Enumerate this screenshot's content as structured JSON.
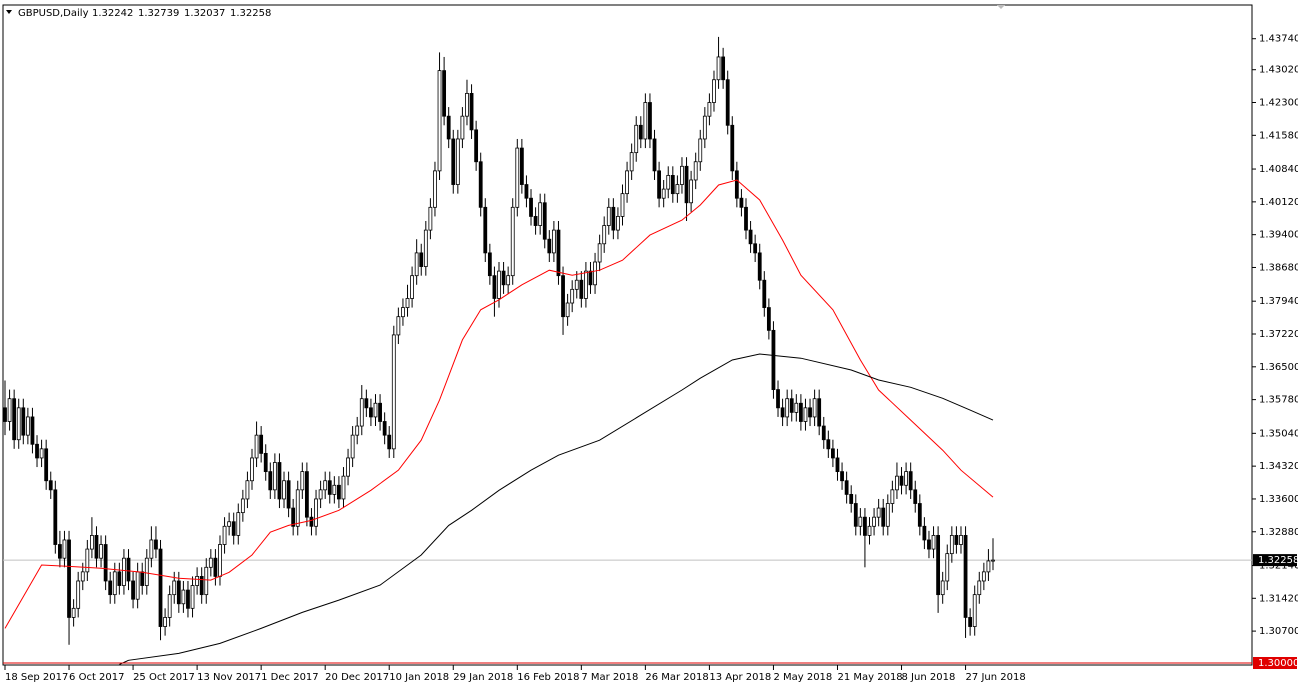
{
  "chart_data": {
    "type": "candlestick",
    "symbol": "GBPUSD,Daily",
    "ylim": [
      1.3,
      1.4444
    ],
    "xlim": [
      0,
      216
    ],
    "yticks": [
      {
        "value": 1.437,
        "label": "1.43740"
      },
      {
        "value": 1.4302,
        "label": "1.43020"
      },
      {
        "value": 1.423,
        "label": "1.42300"
      },
      {
        "value": 1.4158,
        "label": "1.41580"
      },
      {
        "value": 1.4084,
        "label": "1.40840"
      },
      {
        "value": 1.4012,
        "label": "1.40120"
      },
      {
        "value": 1.394,
        "label": "1.39400"
      },
      {
        "value": 1.3868,
        "label": "1.38680"
      },
      {
        "value": 1.3794,
        "label": "1.37940"
      },
      {
        "value": 1.3722,
        "label": "1.37220"
      },
      {
        "value": 1.365,
        "label": "1.36500"
      },
      {
        "value": 1.3578,
        "label": "1.35780"
      },
      {
        "value": 1.3504,
        "label": "1.35040"
      },
      {
        "value": 1.3432,
        "label": "1.34320"
      },
      {
        "value": 1.336,
        "label": "1.33600"
      },
      {
        "value": 1.3288,
        "label": "1.32880"
      },
      {
        "value": 1.3214,
        "label": "1.32140"
      },
      {
        "value": 1.3142,
        "label": "1.31420"
      },
      {
        "value": 1.307,
        "label": "1.30700"
      }
    ],
    "highlight_level": {
      "value": 1.3,
      "label": "1.30000"
    },
    "xticks": [
      {
        "value": 0,
        "label": "18 Sep 2017"
      },
      {
        "value": 14,
        "label": "6 Oct 2017"
      },
      {
        "value": 28,
        "label": "25 Oct 2017"
      },
      {
        "value": 42,
        "label": "13 Nov 2017"
      },
      {
        "value": 56,
        "label": "1 Dec 2017"
      },
      {
        "value": 70,
        "label": "20 Dec 2017"
      },
      {
        "value": 84,
        "label": "10 Jan 2018"
      },
      {
        "value": 98,
        "label": "29 Jan 2018"
      },
      {
        "value": 112,
        "label": "16 Feb 2018"
      },
      {
        "value": 126,
        "label": "7 Mar 2018"
      },
      {
        "value": 140,
        "label": "26 Mar 2018"
      },
      {
        "value": 154,
        "label": "13 Apr 2018"
      },
      {
        "value": 168,
        "label": "2 May 2018"
      },
      {
        "value": 182,
        "label": "21 May 2018"
      },
      {
        "value": 196,
        "label": "8 Jun 2018"
      },
      {
        "value": 210,
        "label": "27 Jun 2018"
      }
    ],
    "open": [
      1.356,
      1.353,
      1.358,
      1.349,
      1.356,
      1.35,
      1.354,
      1.348,
      1.345,
      1.347,
      1.34,
      1.338,
      1.326,
      1.323,
      1.327,
      1.31,
      1.312,
      1.318,
      1.32,
      1.325,
      1.328,
      1.323,
      1.326,
      1.318,
      1.315,
      1.32,
      1.317,
      1.323,
      1.318,
      1.314,
      1.32,
      1.317,
      1.323,
      1.327,
      1.325,
      1.308,
      1.31,
      1.315,
      1.318,
      1.313,
      1.316,
      1.312,
      1.317,
      1.319,
      1.315,
      1.321,
      1.323,
      1.319,
      1.326,
      1.33,
      1.331,
      1.328,
      1.333,
      1.336,
      1.34,
      1.345,
      1.35,
      1.346,
      1.342,
      1.338,
      1.344,
      1.336,
      1.34,
      1.334,
      1.33,
      1.338,
      1.342,
      1.332,
      1.33,
      1.336,
      1.338,
      1.34,
      1.337,
      1.339,
      1.336,
      1.341,
      1.345,
      1.35,
      1.352,
      1.358,
      1.356,
      1.354,
      1.357,
      1.353,
      1.35,
      1.347,
      1.372,
      1.376,
      1.378,
      1.38,
      1.385,
      1.39,
      1.387,
      1.395,
      1.4,
      1.408,
      1.43,
      1.42,
      1.415,
      1.405,
      1.415,
      1.42,
      1.425,
      1.417,
      1.41,
      1.4,
      1.39,
      1.385,
      1.38,
      1.386,
      1.383,
      1.385,
      1.4,
      1.413,
      1.405,
      1.402,
      1.398,
      1.396,
      1.401,
      1.393,
      1.39,
      1.395,
      1.385,
      1.376,
      1.379,
      1.382,
      1.384,
      1.38,
      1.386,
      1.383,
      1.388,
      1.392,
      1.396,
      1.4,
      1.395,
      1.398,
      1.403,
      1.408,
      1.412,
      1.418,
      1.415,
      1.423,
      1.415,
      1.408,
      1.402,
      1.404,
      1.407,
      1.403,
      1.405,
      1.409,
      1.401,
      1.406,
      1.41,
      1.415,
      1.42,
      1.423,
      1.428,
      1.433,
      1.428,
      1.418,
      1.408,
      1.402,
      1.4,
      1.395,
      1.392,
      1.39,
      1.384,
      1.378,
      1.373,
      1.36,
      1.356,
      1.354,
      1.358,
      1.355,
      1.357,
      1.353,
      1.356,
      1.354,
      1.358,
      1.352,
      1.349,
      1.347,
      1.345,
      1.342,
      1.34,
      1.337,
      1.335,
      1.33,
      1.332,
      1.328,
      1.33,
      1.332,
      1.334,
      1.33,
      1.335,
      1.338,
      1.341,
      1.339,
      1.342,
      1.338,
      1.335,
      1.33,
      1.327,
      1.325,
      1.328,
      1.315,
      1.318,
      1.324,
      1.328,
      1.326,
      1.328,
      1.31,
      1.308,
      1.315,
      1.318,
      1.32,
      1.32242
    ],
    "high": [
      1.362,
      1.36,
      1.36,
      1.358,
      1.358,
      1.356,
      1.356,
      1.35,
      1.349,
      1.349,
      1.342,
      1.34,
      1.329,
      1.329,
      1.329,
      1.314,
      1.32,
      1.322,
      1.327,
      1.332,
      1.33,
      1.328,
      1.328,
      1.32,
      1.322,
      1.322,
      1.325,
      1.325,
      1.32,
      1.322,
      1.322,
      1.325,
      1.33,
      1.33,
      1.327,
      1.312,
      1.317,
      1.32,
      1.32,
      1.318,
      1.318,
      1.319,
      1.321,
      1.321,
      1.323,
      1.325,
      1.325,
      1.328,
      1.332,
      1.333,
      1.333,
      1.335,
      1.338,
      1.342,
      1.347,
      1.353,
      1.352,
      1.348,
      1.344,
      1.346,
      1.346,
      1.342,
      1.342,
      1.336,
      1.34,
      1.344,
      1.344,
      1.334,
      1.338,
      1.34,
      1.342,
      1.342,
      1.341,
      1.341,
      1.343,
      1.347,
      1.352,
      1.354,
      1.361,
      1.36,
      1.358,
      1.359,
      1.359,
      1.355,
      1.352,
      1.374,
      1.378,
      1.38,
      1.383,
      1.387,
      1.393,
      1.392,
      1.397,
      1.402,
      1.41,
      1.434,
      1.433,
      1.422,
      1.417,
      1.417,
      1.422,
      1.428,
      1.427,
      1.419,
      1.412,
      1.402,
      1.392,
      1.387,
      1.388,
      1.388,
      1.387,
      1.402,
      1.415,
      1.415,
      1.407,
      1.404,
      1.4,
      1.403,
      1.403,
      1.395,
      1.397,
      1.397,
      1.387,
      1.381,
      1.384,
      1.386,
      1.386,
      1.388,
      1.388,
      1.39,
      1.394,
      1.398,
      1.402,
      1.402,
      1.4,
      1.405,
      1.41,
      1.414,
      1.42,
      1.42,
      1.425,
      1.425,
      1.417,
      1.41,
      1.406,
      1.409,
      1.409,
      1.407,
      1.411,
      1.411,
      1.408,
      1.412,
      1.417,
      1.422,
      1.425,
      1.43,
      1.4374,
      1.435,
      1.43,
      1.42,
      1.41,
      1.404,
      1.402,
      1.397,
      1.394,
      1.392,
      1.386,
      1.38,
      1.375,
      1.362,
      1.358,
      1.36,
      1.36,
      1.359,
      1.359,
      1.358,
      1.358,
      1.36,
      1.36,
      1.354,
      1.351,
      1.349,
      1.347,
      1.344,
      1.342,
      1.339,
      1.337,
      1.334,
      1.334,
      1.332,
      1.334,
      1.336,
      1.336,
      1.337,
      1.34,
      1.344,
      1.343,
      1.344,
      1.344,
      1.34,
      1.337,
      1.332,
      1.329,
      1.33,
      1.33,
      1.32,
      1.326,
      1.33,
      1.33,
      1.33,
      1.33,
      1.312,
      1.317,
      1.32,
      1.322,
      1.325,
      1.32739
    ],
    "low": [
      1.35,
      1.351,
      1.347,
      1.347,
      1.348,
      1.348,
      1.346,
      1.343,
      1.343,
      1.338,
      1.336,
      1.324,
      1.321,
      1.321,
      1.304,
      1.308,
      1.31,
      1.316,
      1.318,
      1.323,
      1.321,
      1.321,
      1.316,
      1.313,
      1.313,
      1.315,
      1.315,
      1.316,
      1.312,
      1.312,
      1.315,
      1.315,
      1.321,
      1.323,
      1.305,
      1.306,
      1.308,
      1.313,
      1.311,
      1.311,
      1.31,
      1.31,
      1.315,
      1.313,
      1.313,
      1.319,
      1.317,
      1.317,
      1.324,
      1.328,
      1.326,
      1.326,
      1.331,
      1.334,
      1.338,
      1.343,
      1.344,
      1.34,
      1.336,
      1.336,
      1.334,
      1.334,
      1.332,
      1.328,
      1.328,
      1.336,
      1.33,
      1.328,
      1.328,
      1.334,
      1.336,
      1.335,
      1.335,
      1.334,
      1.334,
      1.339,
      1.343,
      1.348,
      1.35,
      1.354,
      1.352,
      1.352,
      1.351,
      1.348,
      1.345,
      1.345,
      1.37,
      1.374,
      1.376,
      1.378,
      1.383,
      1.385,
      1.385,
      1.393,
      1.398,
      1.406,
      1.418,
      1.413,
      1.403,
      1.403,
      1.413,
      1.418,
      1.415,
      1.408,
      1.398,
      1.388,
      1.383,
      1.376,
      1.378,
      1.381,
      1.381,
      1.383,
      1.398,
      1.403,
      1.4,
      1.396,
      1.394,
      1.394,
      1.391,
      1.388,
      1.388,
      1.383,
      1.372,
      1.374,
      1.377,
      1.38,
      1.378,
      1.378,
      1.381,
      1.381,
      1.386,
      1.39,
      1.394,
      1.393,
      1.393,
      1.396,
      1.401,
      1.406,
      1.41,
      1.413,
      1.413,
      1.413,
      1.406,
      1.4,
      1.4,
      1.402,
      1.401,
      1.401,
      1.403,
      1.397,
      1.399,
      1.404,
      1.408,
      1.413,
      1.418,
      1.421,
      1.426,
      1.426,
      1.416,
      1.406,
      1.4,
      1.398,
      1.393,
      1.39,
      1.388,
      1.382,
      1.376,
      1.371,
      1.358,
      1.354,
      1.352,
      1.352,
      1.353,
      1.353,
      1.351,
      1.351,
      1.352,
      1.352,
      1.35,
      1.347,
      1.345,
      1.343,
      1.34,
      1.338,
      1.335,
      1.333,
      1.328,
      1.328,
      1.321,
      1.326,
      1.328,
      1.33,
      1.328,
      1.328,
      1.333,
      1.336,
      1.337,
      1.337,
      1.336,
      1.333,
      1.328,
      1.325,
      1.323,
      1.323,
      1.311,
      1.313,
      1.316,
      1.322,
      1.324,
      1.324,
      1.3055,
      1.306,
      1.306,
      1.313,
      1.316,
      1.318,
      1.32037
    ],
    "close": [
      1.353,
      1.358,
      1.349,
      1.356,
      1.35,
      1.354,
      1.348,
      1.345,
      1.347,
      1.34,
      1.338,
      1.326,
      1.323,
      1.327,
      1.31,
      1.312,
      1.318,
      1.32,
      1.325,
      1.328,
      1.323,
      1.326,
      1.318,
      1.315,
      1.32,
      1.317,
      1.323,
      1.318,
      1.314,
      1.32,
      1.317,
      1.323,
      1.327,
      1.325,
      1.308,
      1.31,
      1.315,
      1.318,
      1.313,
      1.316,
      1.312,
      1.317,
      1.319,
      1.315,
      1.321,
      1.323,
      1.319,
      1.326,
      1.33,
      1.331,
      1.328,
      1.333,
      1.336,
      1.34,
      1.345,
      1.35,
      1.346,
      1.342,
      1.338,
      1.344,
      1.336,
      1.34,
      1.334,
      1.33,
      1.338,
      1.342,
      1.332,
      1.33,
      1.336,
      1.338,
      1.34,
      1.337,
      1.339,
      1.336,
      1.341,
      1.345,
      1.35,
      1.352,
      1.358,
      1.356,
      1.354,
      1.357,
      1.353,
      1.35,
      1.347,
      1.372,
      1.376,
      1.378,
      1.38,
      1.385,
      1.39,
      1.387,
      1.395,
      1.4,
      1.408,
      1.43,
      1.42,
      1.415,
      1.405,
      1.415,
      1.42,
      1.425,
      1.417,
      1.41,
      1.4,
      1.39,
      1.385,
      1.38,
      1.386,
      1.383,
      1.385,
      1.4,
      1.413,
      1.405,
      1.402,
      1.398,
      1.396,
      1.401,
      1.393,
      1.39,
      1.395,
      1.385,
      1.376,
      1.379,
      1.382,
      1.384,
      1.38,
      1.386,
      1.383,
      1.388,
      1.392,
      1.396,
      1.4,
      1.395,
      1.398,
      1.403,
      1.408,
      1.412,
      1.418,
      1.415,
      1.423,
      1.415,
      1.408,
      1.402,
      1.404,
      1.407,
      1.403,
      1.405,
      1.409,
      1.401,
      1.406,
      1.41,
      1.415,
      1.42,
      1.423,
      1.428,
      1.433,
      1.428,
      1.418,
      1.408,
      1.402,
      1.4,
      1.395,
      1.392,
      1.39,
      1.384,
      1.378,
      1.373,
      1.36,
      1.356,
      1.354,
      1.358,
      1.355,
      1.357,
      1.353,
      1.356,
      1.354,
      1.358,
      1.352,
      1.349,
      1.347,
      1.345,
      1.342,
      1.34,
      1.337,
      1.335,
      1.33,
      1.332,
      1.328,
      1.33,
      1.332,
      1.334,
      1.33,
      1.335,
      1.338,
      1.341,
      1.339,
      1.342,
      1.338,
      1.335,
      1.33,
      1.327,
      1.325,
      1.328,
      1.315,
      1.318,
      1.324,
      1.328,
      1.326,
      1.328,
      1.31,
      1.308,
      1.315,
      1.318,
      1.32,
      1.3224,
      1.32258
    ],
    "moving_averages": [
      {
        "color": "#ff0000",
        "x": [
          0,
          8,
          14,
          21,
          30,
          38,
          45,
          49,
          54,
          58,
          62,
          67,
          73,
          80,
          86,
          91,
          95,
          100,
          104,
          108,
          113,
          119,
          124,
          130,
          135,
          141,
          148,
          152,
          156,
          160,
          165,
          170,
          174,
          181,
          187,
          191,
          198,
          205,
          209,
          216
        ],
        "values": [
          1.3076,
          1.3215,
          1.3212,
          1.3208,
          1.3199,
          1.3186,
          1.3182,
          1.3199,
          1.3237,
          1.3287,
          1.3302,
          1.3313,
          1.3335,
          1.3379,
          1.3423,
          1.3489,
          1.3577,
          1.3709,
          1.3775,
          1.3797,
          1.383,
          1.3862,
          1.3851,
          1.3862,
          1.3884,
          1.3939,
          1.3972,
          1.4005,
          1.4049,
          1.406,
          1.4016,
          1.3928,
          1.3851,
          1.3775,
          1.3665,
          1.3599,
          1.3533,
          1.3467,
          1.3423,
          1.3364
        ]
      },
      {
        "color": "#000000",
        "x": [
          25,
          27,
          38,
          47,
          56,
          65,
          73,
          82,
          91,
          97,
          102,
          108,
          115,
          121,
          130,
          139,
          148,
          152,
          159,
          165,
          174,
          185,
          191,
          198,
          205,
          211,
          216
        ],
        "values": [
          1.2997,
          1.3006,
          1.3021,
          1.3043,
          1.3076,
          1.3111,
          1.3138,
          1.3171,
          1.3237,
          1.3302,
          1.3335,
          1.3379,
          1.3423,
          1.3456,
          1.3489,
          1.3544,
          1.3599,
          1.3625,
          1.3665,
          1.3678,
          1.3669,
          1.3643,
          1.3621,
          1.3605,
          1.3581,
          1.3555,
          1.3533
        ]
      }
    ]
  }
}
